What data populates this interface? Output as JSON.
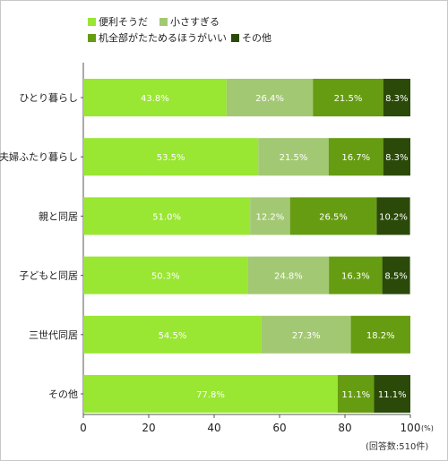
{
  "chart_data": {
    "type": "bar",
    "stacked": true,
    "orientation": "horizontal",
    "categories": [
      "ひとり暮らし",
      "夫婦ふたり暮らし",
      "親と同居",
      "子どもと同居",
      "三世代同居",
      "その他"
    ],
    "series": [
      {
        "name": "便利そうだ",
        "color": "#99e633",
        "values": [
          43.8,
          53.5,
          51.0,
          50.3,
          54.5,
          77.8
        ]
      },
      {
        "name": "小さすぎる",
        "color": "#a3c873",
        "values": [
          26.4,
          21.5,
          12.2,
          24.8,
          27.3,
          0
        ]
      },
      {
        "name": "机全部がたためるほうがいい",
        "color": "#669c11",
        "values": [
          21.5,
          16.7,
          26.5,
          16.3,
          18.2,
          11.1
        ]
      },
      {
        "name": "その他",
        "color": "#2b4a09",
        "values": [
          8.3,
          8.3,
          10.2,
          8.5,
          0,
          11.1
        ]
      }
    ],
    "data_labels": [
      [
        "43.8%",
        "26.4%",
        "21.5%",
        "8.3%"
      ],
      [
        "53.5%",
        "21.5%",
        "16.7%",
        "8.3%"
      ],
      [
        "51.0%",
        "12.2%",
        "26.5%",
        "10.2%"
      ],
      [
        "50.3%",
        "24.8%",
        "16.3%",
        "8.5%"
      ],
      [
        "54.5%",
        "27.3%",
        "18.2%",
        ""
      ],
      [
        "77.8%",
        "",
        "11.1%",
        "11.1%"
      ]
    ],
    "xlim": [
      0,
      100
    ],
    "x_ticks": [
      "0",
      "20",
      "40",
      "60",
      "80",
      "100"
    ],
    "x_unit": "(%)",
    "grid": false,
    "legend_position": "top"
  },
  "note": "(回答数:510件)"
}
